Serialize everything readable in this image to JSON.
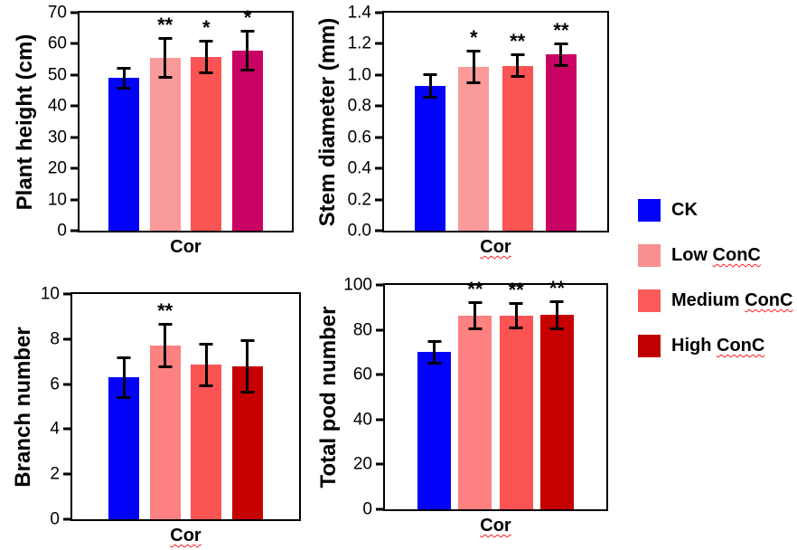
{
  "figure": {
    "background": "#FFFFFF"
  },
  "legend": {
    "items": [
      {
        "label": "CK",
        "marked": "",
        "color": "#0303FA"
      },
      {
        "label": "Low ",
        "marked": "ConC",
        "color": "#F89090"
      },
      {
        "label": "Medium ",
        "marked": "ConC",
        "color": "#FB5A5A"
      },
      {
        "label": "High ",
        "marked": "ConC",
        "color": "#C00000"
      }
    ]
  },
  "chart_data": [
    {
      "type": "bar",
      "ylabel": "Plant height (cm)",
      "xlabel": "Cor",
      "xlabel_spell_underline": false,
      "ylim": [
        0,
        70
      ],
      "yticks": [
        "0",
        "10",
        "20",
        "30",
        "40",
        "50",
        "60",
        "70"
      ],
      "categories": [
        "CK",
        "Low ConC",
        "Medium ConC",
        "High ConC"
      ],
      "values": [
        49,
        55.5,
        55.8,
        57.8
      ],
      "errors": [
        3.6,
        6.7,
        5.6,
        6.8
      ],
      "significance": [
        "",
        "**",
        "*",
        "*"
      ],
      "bar_colors": [
        "#0303FA",
        "#FB9A9A",
        "#FC5353",
        "#C90363"
      ],
      "grid": false
    },
    {
      "type": "bar",
      "ylabel": "Stem diameter (mm)",
      "xlabel": "Cor",
      "xlabel_spell_underline": true,
      "ylim": [
        0,
        1.4
      ],
      "yticks": [
        "0.0",
        "0.2",
        "0.4",
        "0.6",
        "0.8",
        "1.0",
        "1.2",
        "1.4"
      ],
      "categories": [
        "CK",
        "Low ConC",
        "Medium ConC",
        "High ConC"
      ],
      "values": [
        0.93,
        1.05,
        1.06,
        1.13
      ],
      "errors": [
        0.08,
        0.11,
        0.08,
        0.08
      ],
      "significance": [
        "",
        "*",
        "**",
        "**"
      ],
      "bar_colors": [
        "#0303FA",
        "#FB9A9A",
        "#FC5353",
        "#C90363"
      ],
      "grid": false
    },
    {
      "type": "bar",
      "ylabel": "Branch number",
      "xlabel": "Cor",
      "xlabel_spell_underline": true,
      "ylim": [
        0,
        10
      ],
      "yticks": [
        "0",
        "2",
        "4",
        "6",
        "8",
        "10"
      ],
      "categories": [
        "CK",
        "Low ConC",
        "Medium ConC",
        "High ConC"
      ],
      "values": [
        6.3,
        7.7,
        6.85,
        6.8
      ],
      "errors": [
        0.95,
        1.0,
        1.0,
        1.2
      ],
      "significance": [
        "",
        "**",
        "",
        ""
      ],
      "bar_colors": [
        "#0303FA",
        "#FD8181",
        "#FC5353",
        "#C60000"
      ],
      "grid": false
    },
    {
      "type": "bar",
      "ylabel": "Total pod number",
      "xlabel": "Cor",
      "xlabel_spell_underline": true,
      "ylim": [
        0,
        100
      ],
      "yticks": [
        "0",
        "20",
        "40",
        "60",
        "80",
        "100"
      ],
      "categories": [
        "CK",
        "Low ConC",
        "Medium ConC",
        "High ConC"
      ],
      "values": [
        70,
        86.3,
        86.3,
        86.6
      ],
      "errors": [
        5.6,
        6.3,
        6.0,
        6.7
      ],
      "significance": [
        "",
        "**",
        "**",
        "**"
      ],
      "bar_colors": [
        "#0303FA",
        "#FD8181",
        "#FC5353",
        "#C60000"
      ],
      "grid": false
    }
  ]
}
